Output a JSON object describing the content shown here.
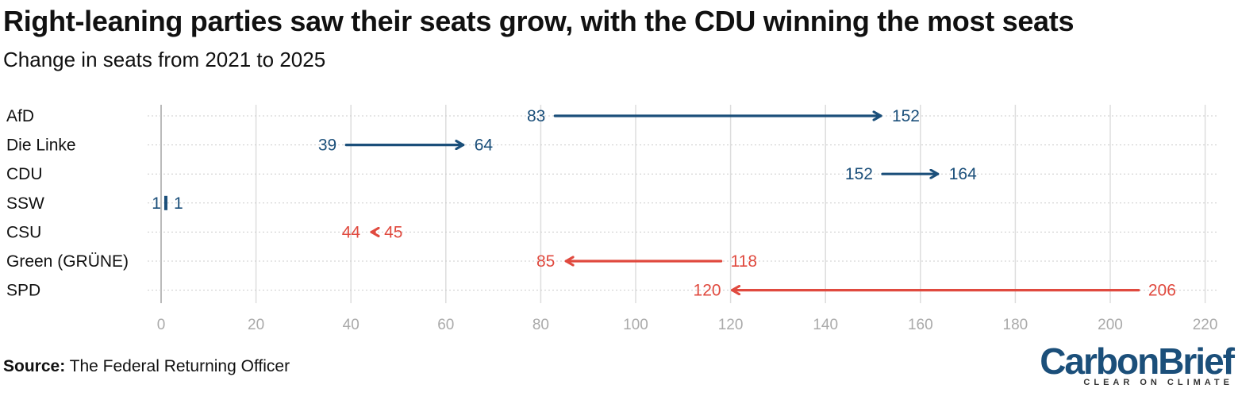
{
  "title": "Right-leaning parties saw their seats grow, with the CDU winning the most seats",
  "subtitle": "Change in seats from 2021 to 2025",
  "source_label": "Source:",
  "source_text": "The Federal Returning Officer",
  "logo": {
    "carbon": "Carbon",
    "brief": "Brief",
    "tagline": "CLEAR ON CLIMATE"
  },
  "colors": {
    "increase": "#1b4f7a",
    "decrease": "#e04a3f",
    "grid": "#dddddd",
    "zero": "#bbbbbb"
  },
  "chart_data": {
    "type": "arrow",
    "title": "Right-leaning parties saw their seats grow, with the CDU winning the most seats",
    "subtitle": "Change in seats from 2021 to 2025",
    "xlabel": "",
    "ylabel": "",
    "xlim": [
      0,
      220
    ],
    "xticks": [
      0,
      20,
      40,
      60,
      80,
      100,
      120,
      140,
      160,
      180,
      200,
      220
    ],
    "categories": [
      "AfD",
      "Die Linke",
      "CDU",
      "SSW",
      "CSU",
      "Green (GRÜNE)",
      "SPD"
    ],
    "series": [
      {
        "name": "2021",
        "values": [
          83,
          39,
          152,
          1,
          45,
          118,
          206
        ]
      },
      {
        "name": "2025",
        "values": [
          152,
          64,
          164,
          1,
          44,
          85,
          120
        ]
      }
    ]
  }
}
